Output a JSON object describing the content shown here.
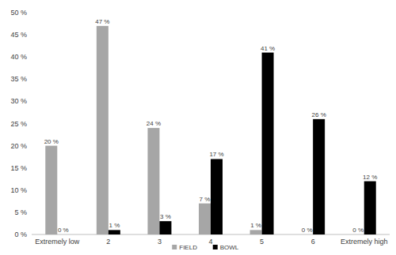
{
  "chart_data": {
    "type": "bar",
    "categories": [
      "Extremely low",
      "2",
      "3",
      "4",
      "5",
      "6",
      "Extremely high"
    ],
    "series": [
      {
        "name": "FIELD",
        "color": "#a6a6a6",
        "values": [
          20,
          47,
          24,
          7,
          1,
          0,
          0
        ],
        "value_labels": [
          "20 %",
          "47 %",
          "24 %",
          "7 %",
          "1 %",
          "0 %",
          "0 %"
        ]
      },
      {
        "name": "BOWL",
        "color": "#000000",
        "values": [
          0,
          1,
          3,
          17,
          41,
          26,
          12
        ],
        "value_labels": [
          "0 %",
          "1 %",
          "3 %",
          "17 %",
          "41 %",
          "26 %",
          "12 %"
        ]
      }
    ],
    "ylim": [
      0,
      50
    ],
    "yticks": [
      {
        "value": 0,
        "label": "0 %"
      },
      {
        "value": 5,
        "label": "5 %"
      },
      {
        "value": 10,
        "label": "10 %"
      },
      {
        "value": 15,
        "label": "15 %"
      },
      {
        "value": 20,
        "label": "20 %"
      },
      {
        "value": 25,
        "label": "25 %"
      },
      {
        "value": 30,
        "label": "30 %"
      },
      {
        "value": 35,
        "label": "35 %"
      },
      {
        "value": 40,
        "label": "40 %"
      },
      {
        "value": 45,
        "label": "45 %"
      },
      {
        "value": 50,
        "label": "50 %"
      }
    ],
    "grid": false,
    "legend": "bottom",
    "data_labels": true
  }
}
